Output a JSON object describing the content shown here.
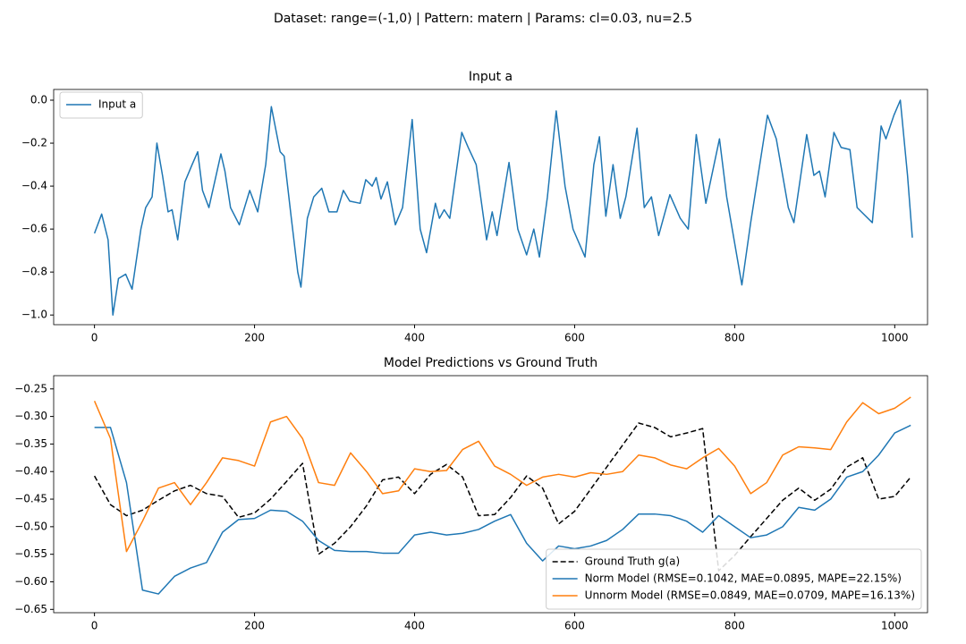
{
  "suptitle": "Dataset: range=(-1,0) | Pattern: matern | Params: cl=0.03, nu=2.5",
  "chart_data": [
    {
      "type": "line",
      "title": "Input a",
      "legend": "upper left",
      "x": [
        0,
        9,
        17,
        23,
        30,
        39,
        47,
        58,
        64,
        72,
        78,
        85,
        92,
        97,
        104,
        113,
        122,
        129,
        135,
        143,
        158,
        163,
        170,
        181,
        194,
        204,
        214,
        221,
        232,
        237,
        246,
        254,
        258,
        266,
        274,
        284,
        293,
        303,
        311,
        319,
        332,
        339,
        347,
        352,
        358,
        366,
        376,
        385,
        397,
        407,
        415,
        426,
        431,
        437,
        444,
        459,
        467,
        477,
        490,
        497,
        503,
        518,
        529,
        540,
        549,
        556,
        566,
        577,
        588,
        598,
        613,
        624,
        631,
        639,
        648,
        657,
        664,
        678,
        687,
        696,
        705,
        719,
        732,
        742,
        752,
        764,
        781,
        790,
        809,
        820,
        841,
        852,
        867,
        874,
        890,
        899,
        906,
        913,
        924,
        933,
        944,
        953,
        972,
        983,
        989,
        999,
        1007,
        1016,
        1022
      ],
      "series": [
        {
          "name": "Input a",
          "color": "#1f77b4",
          "linestyle": "solid",
          "values": [
            -0.62,
            -0.53,
            -0.65,
            -1.0,
            -0.83,
            -0.81,
            -0.88,
            -0.6,
            -0.5,
            -0.45,
            -0.2,
            -0.35,
            -0.52,
            -0.51,
            -0.65,
            -0.38,
            -0.3,
            -0.24,
            -0.42,
            -0.5,
            -0.25,
            -0.33,
            -0.5,
            -0.58,
            -0.42,
            -0.52,
            -0.3,
            -0.03,
            -0.24,
            -0.26,
            -0.55,
            -0.8,
            -0.87,
            -0.55,
            -0.45,
            -0.41,
            -0.52,
            -0.52,
            -0.42,
            -0.47,
            -0.48,
            -0.37,
            -0.4,
            -0.36,
            -0.46,
            -0.38,
            -0.58,
            -0.5,
            -0.09,
            -0.6,
            -0.71,
            -0.48,
            -0.55,
            -0.51,
            -0.55,
            -0.15,
            -0.22,
            -0.3,
            -0.65,
            -0.52,
            -0.63,
            -0.29,
            -0.6,
            -0.72,
            -0.6,
            -0.73,
            -0.45,
            -0.05,
            -0.4,
            -0.6,
            -0.73,
            -0.3,
            -0.17,
            -0.54,
            -0.3,
            -0.55,
            -0.45,
            -0.13,
            -0.5,
            -0.45,
            -0.63,
            -0.44,
            -0.55,
            -0.6,
            -0.16,
            -0.48,
            -0.18,
            -0.45,
            -0.86,
            -0.57,
            -0.07,
            -0.18,
            -0.5,
            -0.57,
            -0.16,
            -0.35,
            -0.33,
            -0.45,
            -0.15,
            -0.22,
            -0.23,
            -0.5,
            -0.57,
            -0.12,
            -0.18,
            -0.07,
            0.0,
            -0.35,
            -0.64
          ]
        }
      ],
      "xlim": [
        -51,
        1041
      ],
      "xticks": [
        0,
        200,
        400,
        600,
        800,
        1000
      ],
      "ylim": [
        -1.045,
        0.05
      ],
      "yticks": [
        {
          "value": -1.0,
          "label": "−1.0"
        },
        {
          "value": -0.8,
          "label": "−0.8"
        },
        {
          "value": -0.6,
          "label": "−0.6"
        },
        {
          "value": -0.4,
          "label": "−0.4"
        },
        {
          "value": -0.2,
          "label": "−0.2"
        },
        {
          "value": 0.0,
          "label": "0.0"
        }
      ]
    },
    {
      "type": "line",
      "title": "Model Predictions vs Ground Truth",
      "legend": "lower right",
      "x": [
        0,
        20,
        40,
        60,
        80,
        100,
        120,
        140,
        160,
        180,
        200,
        220,
        240,
        260,
        280,
        300,
        320,
        340,
        360,
        380,
        400,
        420,
        440,
        460,
        480,
        500,
        520,
        540,
        560,
        580,
        600,
        620,
        640,
        660,
        680,
        700,
        720,
        740,
        760,
        780,
        800,
        820,
        840,
        860,
        880,
        900,
        920,
        940,
        960,
        980,
        1000,
        1020
      ],
      "series": [
        {
          "name": "Ground Truth g(a)",
          "color": "#000000",
          "linestyle": "dashed",
          "values": [
            -0.408,
            -0.46,
            -0.48,
            -0.47,
            -0.452,
            -0.435,
            -0.425,
            -0.44,
            -0.445,
            -0.483,
            -0.475,
            -0.45,
            -0.418,
            -0.385,
            -0.55,
            -0.53,
            -0.5,
            -0.462,
            -0.415,
            -0.41,
            -0.44,
            -0.405,
            -0.387,
            -0.41,
            -0.48,
            -0.478,
            -0.447,
            -0.408,
            -0.43,
            -0.495,
            -0.472,
            -0.432,
            -0.392,
            -0.352,
            -0.312,
            -0.32,
            -0.337,
            -0.33,
            -0.322,
            -0.58,
            -0.552,
            -0.518,
            -0.485,
            -0.452,
            -0.43,
            -0.452,
            -0.432,
            -0.392,
            -0.375,
            -0.45,
            -0.445,
            -0.41
          ]
        },
        {
          "name": "Norm Model (RMSE=0.1042, MAE=0.0895, MAPE=22.15%)",
          "color": "#1f77b4",
          "linestyle": "solid",
          "values": [
            -0.32,
            -0.32,
            -0.42,
            -0.615,
            -0.622,
            -0.59,
            -0.575,
            -0.565,
            -0.51,
            -0.487,
            -0.485,
            -0.47,
            -0.472,
            -0.49,
            -0.525,
            -0.543,
            -0.545,
            -0.545,
            -0.548,
            -0.548,
            -0.515,
            -0.51,
            -0.515,
            -0.512,
            -0.505,
            -0.49,
            -0.478,
            -0.53,
            -0.562,
            -0.535,
            -0.54,
            -0.535,
            -0.525,
            -0.505,
            -0.477,
            -0.477,
            -0.48,
            -0.49,
            -0.51,
            -0.48,
            -0.5,
            -0.52,
            -0.515,
            -0.5,
            -0.465,
            -0.47,
            -0.45,
            -0.41,
            -0.4,
            -0.37,
            -0.33,
            -0.316
          ]
        },
        {
          "name": "Unnorm Model (RMSE=0.0849, MAE=0.0709, MAPE=16.13%)",
          "color": "#ff7f0e",
          "linestyle": "solid",
          "values": [
            -0.272,
            -0.34,
            -0.545,
            -0.49,
            -0.43,
            -0.42,
            -0.46,
            -0.42,
            -0.375,
            -0.38,
            -0.39,
            -0.31,
            -0.3,
            -0.34,
            -0.42,
            -0.425,
            -0.366,
            -0.4,
            -0.44,
            -0.435,
            -0.395,
            -0.4,
            -0.398,
            -0.36,
            -0.345,
            -0.39,
            -0.405,
            -0.425,
            -0.41,
            -0.405,
            -0.41,
            -0.402,
            -0.405,
            -0.4,
            -0.37,
            -0.375,
            -0.388,
            -0.395,
            -0.375,
            -0.358,
            -0.39,
            -0.44,
            -0.42,
            -0.37,
            -0.355,
            -0.357,
            -0.36,
            -0.31,
            -0.275,
            -0.295,
            -0.285,
            -0.265
          ]
        }
      ],
      "xlim": [
        -51,
        1041
      ],
      "xticks": [
        0,
        200,
        400,
        600,
        800,
        1000
      ],
      "ylim": [
        -0.656,
        -0.226
      ],
      "yticks": [
        {
          "value": -0.65,
          "label": "−0.65"
        },
        {
          "value": -0.6,
          "label": "−0.60"
        },
        {
          "value": -0.55,
          "label": "−0.55"
        },
        {
          "value": -0.5,
          "label": "−0.50"
        },
        {
          "value": -0.45,
          "label": "−0.45"
        },
        {
          "value": -0.4,
          "label": "−0.40"
        },
        {
          "value": -0.35,
          "label": "−0.35"
        },
        {
          "value": -0.3,
          "label": "−0.30"
        },
        {
          "value": -0.25,
          "label": "−0.25"
        }
      ]
    }
  ]
}
